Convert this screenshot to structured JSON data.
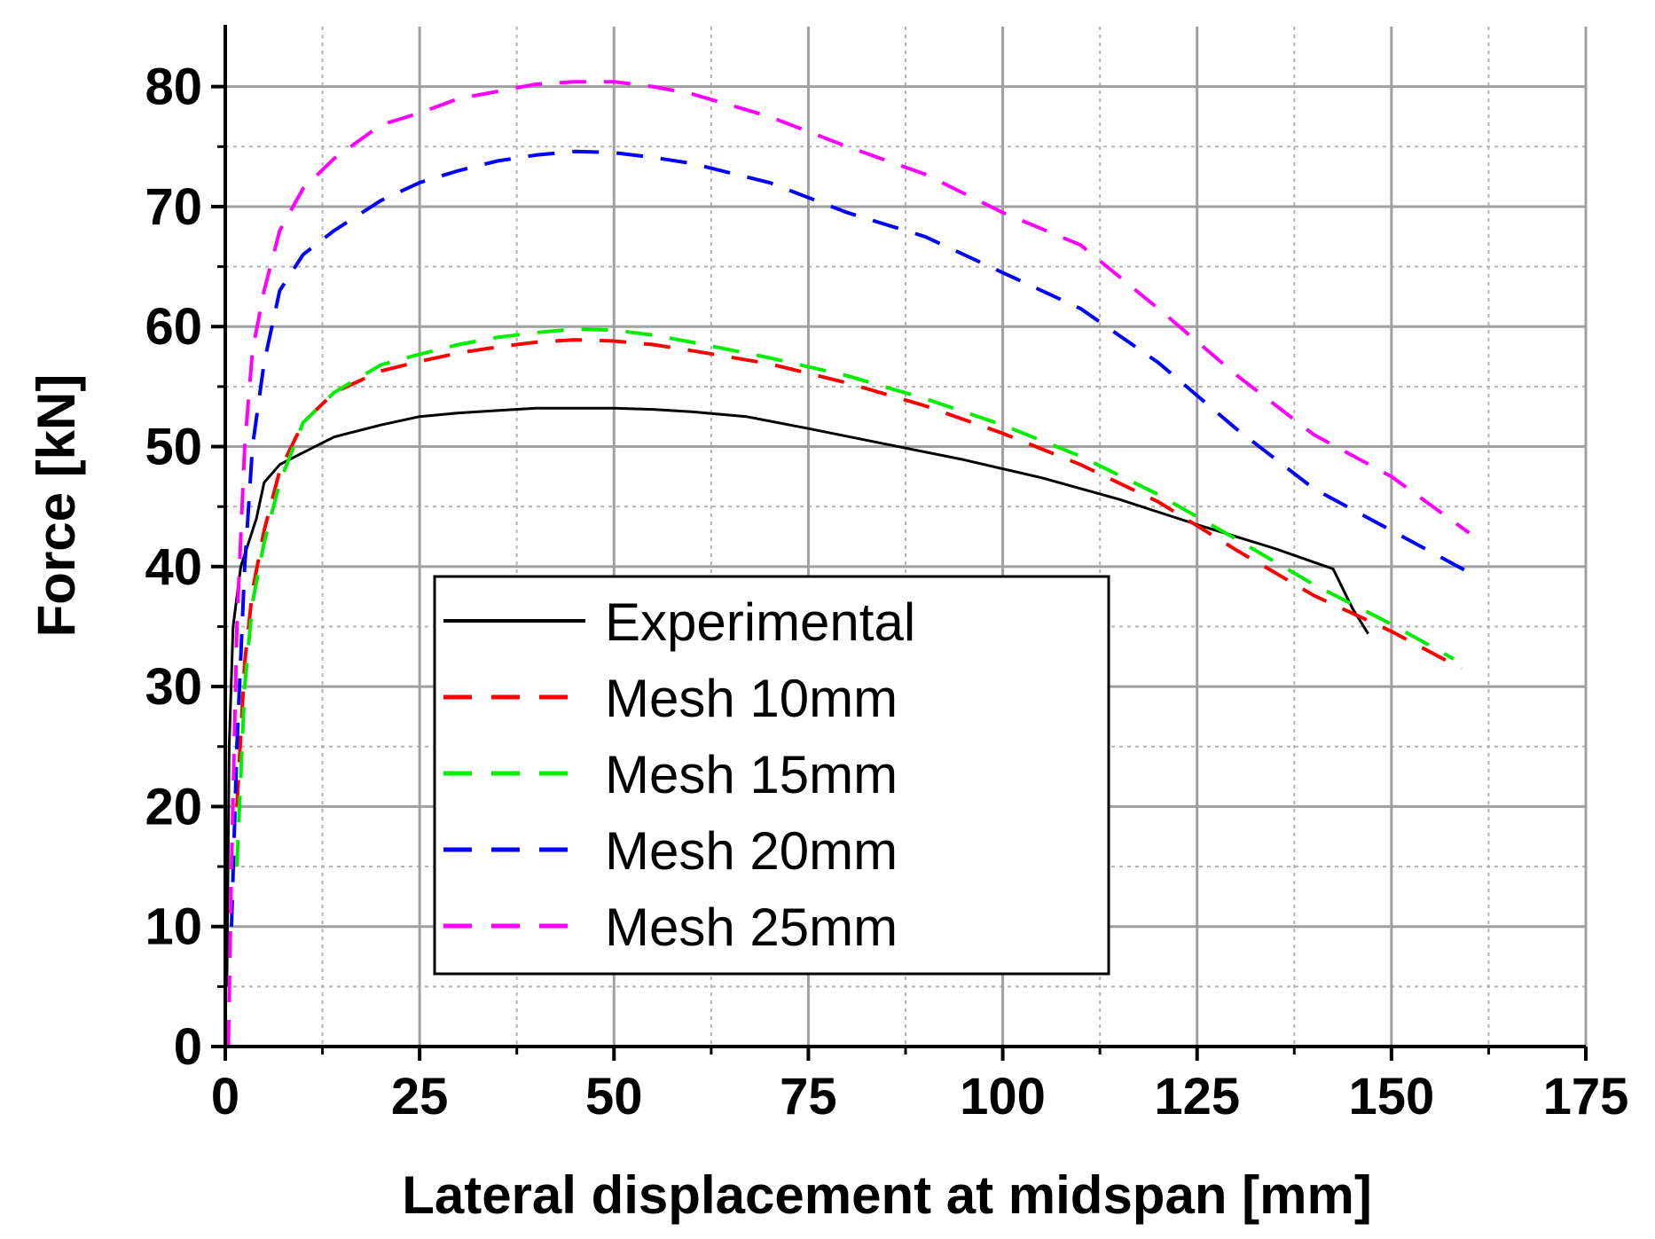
{
  "chart_data": {
    "type": "line",
    "title": "",
    "xlabel": "Lateral displacement at midspan [mm]",
    "ylabel": "Force [kN]",
    "xlim": [
      0,
      175
    ],
    "ylim": [
      0,
      85
    ],
    "xticks": [
      0,
      25,
      50,
      75,
      100,
      125,
      150,
      175
    ],
    "yticks": [
      0,
      10,
      20,
      30,
      40,
      50,
      60,
      70,
      80
    ],
    "xtick_labels": [
      "0",
      "25",
      "50",
      "75",
      "100",
      "125",
      "150",
      "175"
    ],
    "ytick_labels": [
      "0",
      "10",
      "20",
      "30",
      "40",
      "50",
      "60",
      "70",
      "80"
    ],
    "grid": true,
    "legend_position": "center-left",
    "series": [
      {
        "name": "Experimental",
        "color": "#000000",
        "style": "solid",
        "x": [
          0.2,
          0.5,
          1,
          2,
          3,
          4,
          5,
          7,
          10,
          14,
          20,
          25,
          30,
          35,
          40,
          45,
          50,
          55,
          60,
          67,
          75,
          85,
          95,
          105,
          115,
          125,
          135,
          142.5,
          145,
          147
        ],
        "y": [
          5,
          25,
          35,
          40,
          42,
          44,
          47,
          48.5,
          49.5,
          50.8,
          51.8,
          52.5,
          52.8,
          53.0,
          53.2,
          53.2,
          53.2,
          53.1,
          52.9,
          52.5,
          51.5,
          50.2,
          48.9,
          47.4,
          45.6,
          43.5,
          41.5,
          39.8,
          36.5,
          34.4
        ]
      },
      {
        "name": "Mesh 10mm",
        "color": "#ff0000",
        "style": "dashed",
        "x": [
          1.5,
          2.5,
          3.5,
          5,
          7,
          10,
          14,
          20,
          25,
          30,
          35,
          40,
          45,
          50,
          55,
          60,
          70,
          80,
          90,
          100,
          110,
          120,
          130,
          140,
          150,
          159
        ],
        "y": [
          20,
          32,
          38,
          43,
          48,
          52,
          54.5,
          56.3,
          57.1,
          57.8,
          58.3,
          58.7,
          58.9,
          58.8,
          58.5,
          58.0,
          56.9,
          55.3,
          53.4,
          51.1,
          48.5,
          45.4,
          41.4,
          37.6,
          34.6,
          31.5
        ]
      },
      {
        "name": "Mesh 15mm",
        "color": "#00ee00",
        "style": "dashed",
        "x": [
          1.5,
          2.5,
          3.5,
          5,
          7,
          10,
          14,
          20,
          25,
          30,
          35,
          40,
          45,
          50,
          55,
          60,
          70,
          80,
          90,
          100,
          110,
          120,
          130,
          140,
          150,
          158
        ],
        "y": [
          15,
          30,
          37,
          42,
          47,
          52,
          54.5,
          56.8,
          57.7,
          58.5,
          59.1,
          59.5,
          59.8,
          59.7,
          59.3,
          58.7,
          57.4,
          55.9,
          54.0,
          51.8,
          49.2,
          46.0,
          42.3,
          38.5,
          35.2,
          32.3
        ]
      },
      {
        "name": "Mesh 20mm",
        "color": "#0000ff",
        "style": "dashed",
        "x": [
          0.8,
          1.5,
          2.5,
          3.5,
          5,
          7,
          10,
          14,
          20,
          25,
          30,
          35,
          40,
          45,
          50,
          55,
          60,
          70,
          80,
          90,
          100,
          110,
          120,
          130,
          140,
          150,
          160
        ],
        "y": [
          10,
          25,
          40,
          50,
          57,
          63,
          66,
          68,
          70.5,
          72.0,
          73.0,
          73.8,
          74.3,
          74.6,
          74.5,
          74.1,
          73.6,
          72.0,
          69.5,
          67.5,
          64.5,
          61.5,
          57.0,
          51.5,
          46.5,
          43.0,
          39.5
        ]
      },
      {
        "name": "Mesh 25mm",
        "color": "#ff00ff",
        "style": "dashed",
        "x": [
          0.4,
          0.8,
          1.5,
          2.5,
          3.5,
          5,
          7,
          10,
          14,
          20,
          25,
          30,
          35,
          40,
          45,
          50,
          55,
          60,
          70,
          80,
          90,
          100,
          110,
          120,
          130,
          140,
          150,
          160
        ],
        "y": [
          0,
          15,
          35,
          50,
          58,
          63,
          68,
          71.5,
          74,
          76.8,
          77.8,
          79.0,
          79.6,
          80.2,
          80.4,
          80.4,
          80.0,
          79.4,
          77.5,
          75.0,
          72.7,
          69.5,
          66.8,
          61.5,
          56.0,
          51.0,
          47.5,
          42.8
        ]
      }
    ]
  }
}
